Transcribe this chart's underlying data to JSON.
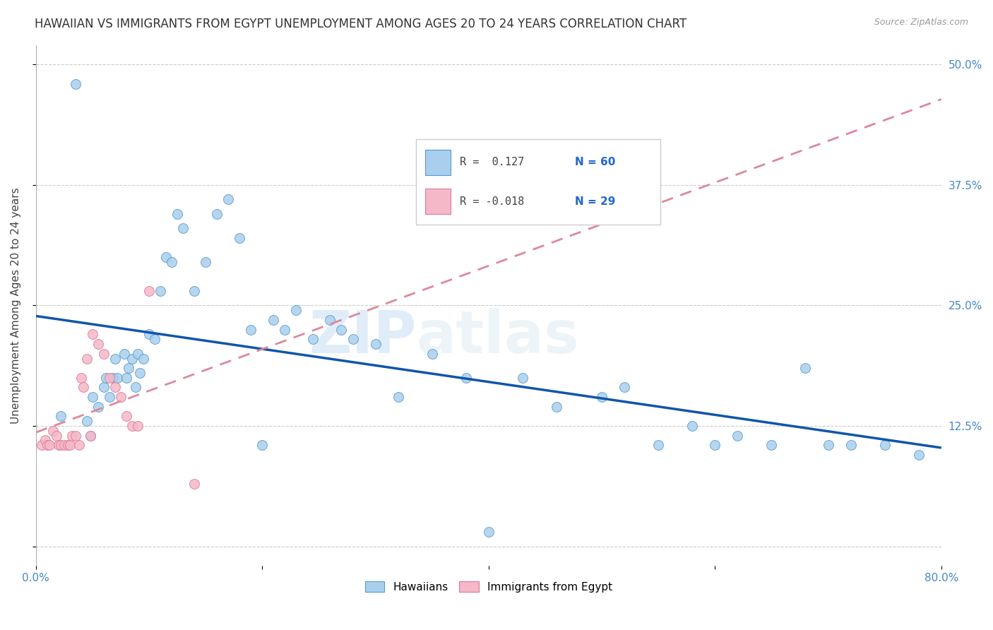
{
  "title": "HAWAIIAN VS IMMIGRANTS FROM EGYPT UNEMPLOYMENT AMONG AGES 20 TO 24 YEARS CORRELATION CHART",
  "source": "Source: ZipAtlas.com",
  "ylabel": "Unemployment Among Ages 20 to 24 years",
  "xlim": [
    0.0,
    0.8
  ],
  "ylim": [
    -0.02,
    0.52
  ],
  "yticks": [
    0.0,
    0.125,
    0.25,
    0.375,
    0.5
  ],
  "ytick_labels": [
    "",
    "12.5%",
    "25.0%",
    "37.5%",
    "50.0%"
  ],
  "xticks": [
    0.0,
    0.2,
    0.4,
    0.6,
    0.8
  ],
  "xtick_labels": [
    "0.0%",
    "",
    "",
    "",
    "80.0%"
  ],
  "background_color": "#ffffff",
  "watermark_zip": "ZIP",
  "watermark_atlas": "atlas",
  "legend_R1": "R =  0.127",
  "legend_N1": "N = 60",
  "legend_R2": "R = -0.018",
  "legend_N2": "N = 29",
  "hawaiian_color": "#aacfee",
  "hawaii_edge_color": "#5599cc",
  "egypt_color": "#f5b8c8",
  "egypt_edge_color": "#dd7799",
  "trend_hawaii_color": "#1155aa",
  "trend_egypt_color": "#dd8899",
  "hawaiian_x": [
    0.022,
    0.035,
    0.045,
    0.048,
    0.05,
    0.055,
    0.06,
    0.062,
    0.065,
    0.068,
    0.07,
    0.072,
    0.078,
    0.08,
    0.082,
    0.085,
    0.088,
    0.09,
    0.092,
    0.095,
    0.1,
    0.105,
    0.11,
    0.115,
    0.12,
    0.125,
    0.13,
    0.14,
    0.15,
    0.16,
    0.17,
    0.18,
    0.19,
    0.2,
    0.21,
    0.22,
    0.23,
    0.245,
    0.26,
    0.27,
    0.28,
    0.3,
    0.32,
    0.35,
    0.38,
    0.4,
    0.43,
    0.46,
    0.5,
    0.52,
    0.55,
    0.58,
    0.6,
    0.62,
    0.65,
    0.68,
    0.7,
    0.72,
    0.75,
    0.78
  ],
  "hawaiian_y": [
    0.135,
    0.48,
    0.13,
    0.115,
    0.155,
    0.145,
    0.165,
    0.175,
    0.155,
    0.175,
    0.195,
    0.175,
    0.2,
    0.175,
    0.185,
    0.195,
    0.165,
    0.2,
    0.18,
    0.195,
    0.22,
    0.215,
    0.265,
    0.3,
    0.295,
    0.345,
    0.33,
    0.265,
    0.295,
    0.345,
    0.36,
    0.32,
    0.225,
    0.105,
    0.235,
    0.225,
    0.245,
    0.215,
    0.235,
    0.225,
    0.215,
    0.21,
    0.155,
    0.2,
    0.175,
    0.015,
    0.175,
    0.145,
    0.155,
    0.165,
    0.105,
    0.125,
    0.105,
    0.115,
    0.105,
    0.185,
    0.105,
    0.105,
    0.105,
    0.095
  ],
  "egypt_x": [
    0.005,
    0.008,
    0.01,
    0.012,
    0.015,
    0.018,
    0.02,
    0.022,
    0.025,
    0.028,
    0.03,
    0.032,
    0.035,
    0.038,
    0.04,
    0.042,
    0.045,
    0.048,
    0.05,
    0.055,
    0.06,
    0.065,
    0.07,
    0.075,
    0.08,
    0.085,
    0.09,
    0.1,
    0.14
  ],
  "egypt_y": [
    0.105,
    0.11,
    0.105,
    0.105,
    0.12,
    0.115,
    0.105,
    0.105,
    0.105,
    0.105,
    0.105,
    0.115,
    0.115,
    0.105,
    0.175,
    0.165,
    0.195,
    0.115,
    0.22,
    0.21,
    0.2,
    0.175,
    0.165,
    0.155,
    0.135,
    0.125,
    0.125,
    0.265,
    0.065
  ],
  "grid_color": "#cccccc",
  "title_fontsize": 12,
  "axis_fontsize": 11,
  "tick_fontsize": 11,
  "marker_size": 100
}
